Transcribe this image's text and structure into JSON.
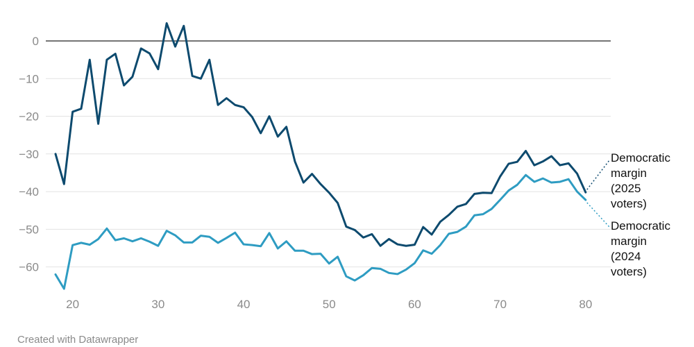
{
  "chart_data": {
    "type": "line",
    "xlim": [
      18,
      80
    ],
    "ylim": [
      -67,
      7
    ],
    "x_ticks": [
      20,
      30,
      40,
      50,
      60,
      70,
      80
    ],
    "y_ticks": [
      0,
      -10,
      -20,
      -30,
      -40,
      -50,
      -60
    ],
    "x_tick_labels": [
      "20",
      "30",
      "40",
      "50",
      "60",
      "70",
      "80"
    ],
    "y_tick_labels": [
      "0",
      "−10",
      "−20",
      "−30",
      "−40",
      "−50",
      "−60"
    ],
    "grid": true,
    "x": [
      18,
      19,
      20,
      21,
      22,
      23,
      24,
      25,
      26,
      27,
      28,
      29,
      30,
      31,
      32,
      33,
      34,
      35,
      36,
      37,
      38,
      39,
      40,
      41,
      42,
      43,
      44,
      45,
      46,
      47,
      48,
      49,
      50,
      51,
      52,
      53,
      54,
      55,
      56,
      57,
      58,
      59,
      60,
      61,
      62,
      63,
      64,
      65,
      66,
      67,
      68,
      69,
      70,
      71,
      72,
      73,
      74,
      75,
      76,
      77,
      78,
      79,
      80
    ],
    "series": [
      {
        "name_lines": [
          "Democratic",
          "margin",
          "(2025",
          "voters)"
        ],
        "color": "#0d4a6e",
        "values": [
          -30,
          -38,
          -18.8,
          -18,
          -5,
          -22,
          -5,
          -3.4,
          -11.8,
          -9.5,
          -2,
          -3.3,
          -7.5,
          4.7,
          -1.5,
          4,
          -9.3,
          -10,
          -5,
          -17,
          -15.2,
          -17,
          -17.6,
          -20.2,
          -24.5,
          -20,
          -25.4,
          -22.8,
          -32,
          -37.6,
          -35.3,
          -38,
          -40.3,
          -43,
          -49.3,
          -50.2,
          -52.2,
          -51.3,
          -54.4,
          -52.6,
          -54,
          -54.4,
          -54.1,
          -49.4,
          -51.4,
          -48,
          -46.2,
          -44,
          -43.3,
          -40.6,
          -40.3,
          -40.4,
          -36,
          -32.6,
          -32.1,
          -29.2,
          -33,
          -32,
          -30.6,
          -33,
          -32.5,
          -35.2,
          -40.2
        ]
      },
      {
        "name_lines": [
          "Democratic",
          "margin",
          "(2024",
          "voters)"
        ],
        "color": "#2e9cc2",
        "values": [
          -62,
          -65.8,
          -54.2,
          -53.6,
          -54.1,
          -52.6,
          -49.8,
          -52.9,
          -52.4,
          -53.2,
          -52.4,
          -53.3,
          -54.4,
          -50.4,
          -51.6,
          -53.5,
          -53.5,
          -51.7,
          -52,
          -53.6,
          -52.3,
          -50.9,
          -54,
          -54.2,
          -54.5,
          -51,
          -55.1,
          -53.2,
          -55.7,
          -55.7,
          -56.6,
          -56.5,
          -59.1,
          -57.3,
          -62.5,
          -63.6,
          -62.2,
          -60.3,
          -60.5,
          -61.6,
          -61.9,
          -60.7,
          -59,
          -55.6,
          -56.5,
          -54.2,
          -51.2,
          -50.7,
          -49.3,
          -46.3,
          -46,
          -44.6,
          -42.2,
          -39.7,
          -38.2,
          -35.6,
          -37.4,
          -36.5,
          -37.6,
          -37.4,
          -36.7,
          -40,
          -42.2
        ]
      }
    ]
  },
  "footer": {
    "credit": "Created with Datawrapper"
  }
}
